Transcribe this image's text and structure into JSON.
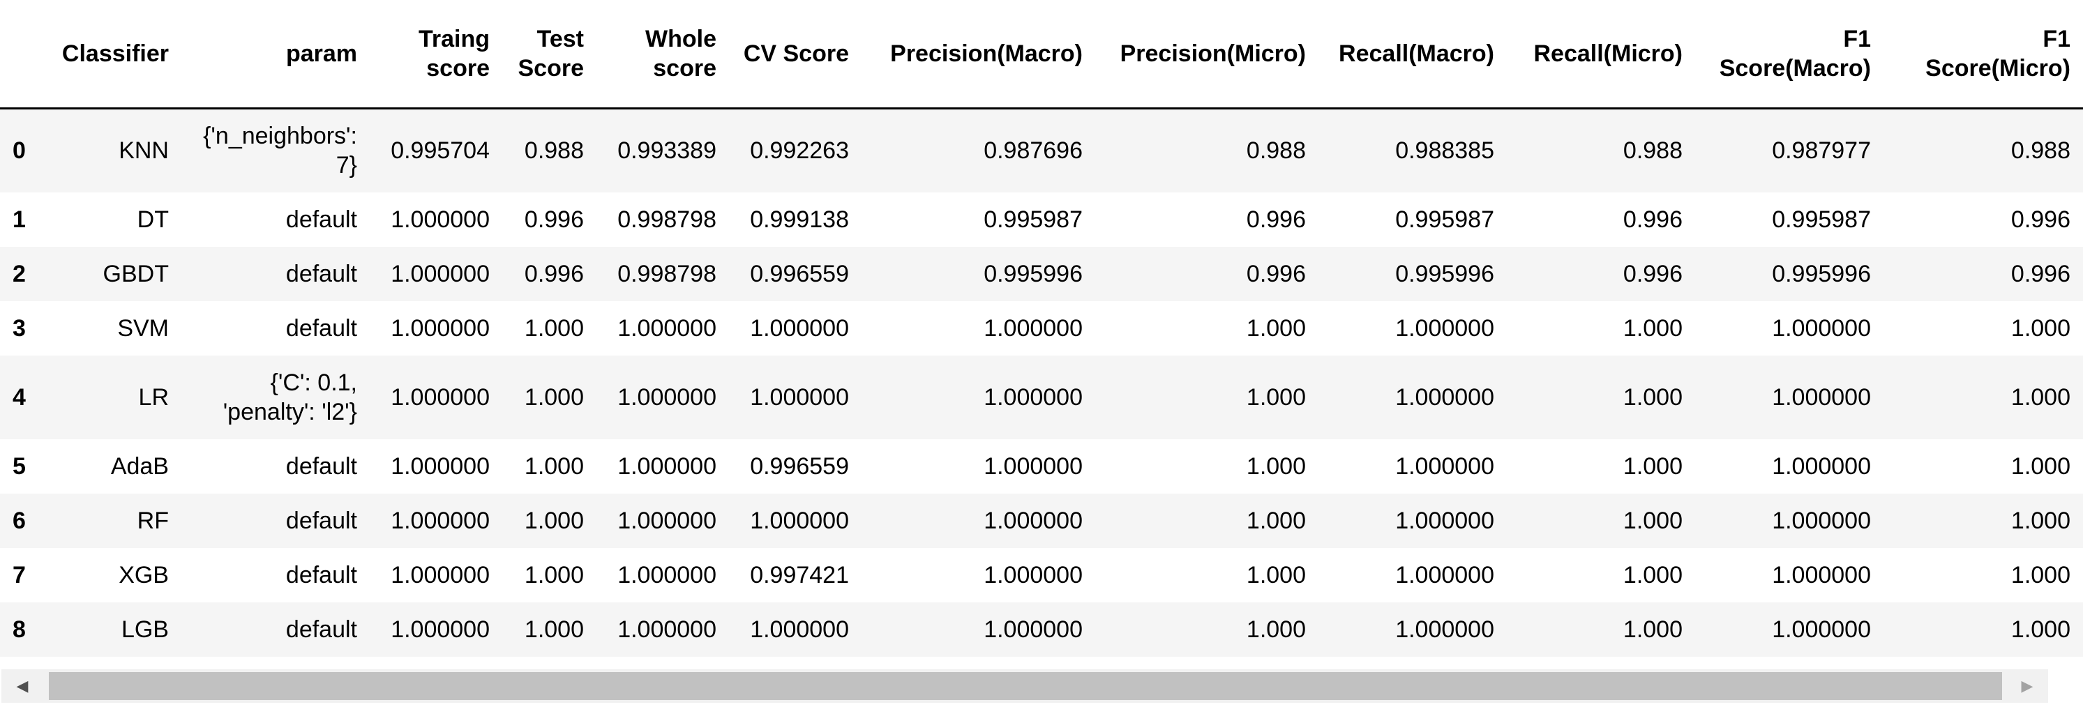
{
  "table": {
    "columns": [
      "",
      "Classifier",
      "param",
      "Traing score",
      "Test Score",
      "Whole score",
      "CV Score",
      "Precision(Macro)",
      "Precision(Micro)",
      "Recall(Macro)",
      "Recall(Micro)",
      "F1 Score(Macro)",
      "F1 Score(Micro)"
    ],
    "rows": [
      [
        "0",
        "KNN",
        "{'n_neighbors': 7}",
        "0.995704",
        "0.988",
        "0.993389",
        "0.992263",
        "0.987696",
        "0.988",
        "0.988385",
        "0.988",
        "0.987977",
        "0.988"
      ],
      [
        "1",
        "DT",
        "default",
        "1.000000",
        "0.996",
        "0.998798",
        "0.999138",
        "0.995987",
        "0.996",
        "0.995987",
        "0.996",
        "0.995987",
        "0.996"
      ],
      [
        "2",
        "GBDT",
        "default",
        "1.000000",
        "0.996",
        "0.998798",
        "0.996559",
        "0.995996",
        "0.996",
        "0.995996",
        "0.996",
        "0.995996",
        "0.996"
      ],
      [
        "3",
        "SVM",
        "default",
        "1.000000",
        "1.000",
        "1.000000",
        "1.000000",
        "1.000000",
        "1.000",
        "1.000000",
        "1.000",
        "1.000000",
        "1.000"
      ],
      [
        "4",
        "LR",
        "{'C': 0.1, 'penalty': 'l2'}",
        "1.000000",
        "1.000",
        "1.000000",
        "1.000000",
        "1.000000",
        "1.000",
        "1.000000",
        "1.000",
        "1.000000",
        "1.000"
      ],
      [
        "5",
        "AdaB",
        "default",
        "1.000000",
        "1.000",
        "1.000000",
        "0.996559",
        "1.000000",
        "1.000",
        "1.000000",
        "1.000",
        "1.000000",
        "1.000"
      ],
      [
        "6",
        "RF",
        "default",
        "1.000000",
        "1.000",
        "1.000000",
        "1.000000",
        "1.000000",
        "1.000",
        "1.000000",
        "1.000",
        "1.000000",
        "1.000"
      ],
      [
        "7",
        "XGB",
        "default",
        "1.000000",
        "1.000",
        "1.000000",
        "0.997421",
        "1.000000",
        "1.000",
        "1.000000",
        "1.000",
        "1.000000",
        "1.000"
      ],
      [
        "8",
        "LGB",
        "default",
        "1.000000",
        "1.000",
        "1.000000",
        "1.000000",
        "1.000000",
        "1.000",
        "1.000000",
        "1.000",
        "1.000000",
        "1.000"
      ]
    ]
  },
  "scrollbar": {
    "left_icon": "scroll-left-arrow-icon",
    "right_icon": "scroll-right-arrow-icon",
    "left_glyph": "◀",
    "right_glyph": "▶"
  },
  "colors": {
    "odd_row_bg": "#f5f5f5",
    "even_row_bg": "#ffffff",
    "scroll_track": "#f1f1f1",
    "scroll_thumb": "#c1c1c1"
  }
}
